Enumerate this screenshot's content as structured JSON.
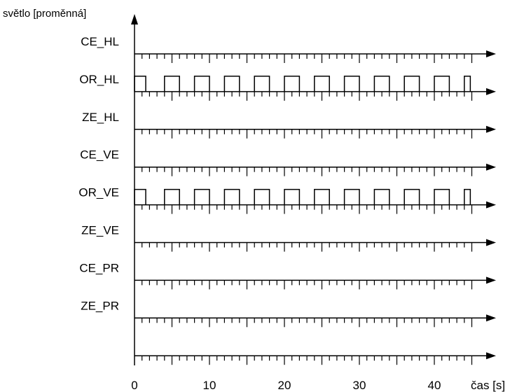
{
  "chart_data": {
    "type": "line",
    "title": "",
    "ylabel": "světlo [proměnná]",
    "xlabel": "čas [s]",
    "x_ticks": [
      0,
      10,
      20,
      30,
      40
    ],
    "xlim": [
      0,
      45
    ],
    "minor_tick_step": 1,
    "major_tick_step": 5,
    "grid": false,
    "legend": "none",
    "series": [
      {
        "name": "CE_HL",
        "pulses": []
      },
      {
        "name": "OR_HL",
        "pulses": [
          [
            0,
            1.5
          ],
          [
            4,
            6
          ],
          [
            8,
            10
          ],
          [
            12,
            14
          ],
          [
            16,
            18
          ],
          [
            20,
            22
          ],
          [
            24,
            26
          ],
          [
            28,
            30
          ],
          [
            32,
            34
          ],
          [
            36,
            38
          ],
          [
            40,
            42
          ],
          [
            44,
            44.8
          ]
        ]
      },
      {
        "name": "ZE_HL",
        "pulses": []
      },
      {
        "name": "CE_VE",
        "pulses": []
      },
      {
        "name": "OR_VE",
        "pulses": [
          [
            0,
            1.5
          ],
          [
            4,
            6
          ],
          [
            8,
            10
          ],
          [
            12,
            14
          ],
          [
            16,
            18
          ],
          [
            20,
            22
          ],
          [
            24,
            26
          ],
          [
            28,
            30
          ],
          [
            32,
            34
          ],
          [
            36,
            38
          ],
          [
            40,
            42
          ],
          [
            44,
            44.8
          ]
        ]
      },
      {
        "name": "ZE_VE",
        "pulses": []
      },
      {
        "name": "CE_PR",
        "pulses": []
      },
      {
        "name": "ZE_PR",
        "pulses": []
      },
      {
        "name": "",
        "pulses": []
      }
    ],
    "colors": {
      "line": "#000000",
      "background": "#ffffff"
    }
  }
}
